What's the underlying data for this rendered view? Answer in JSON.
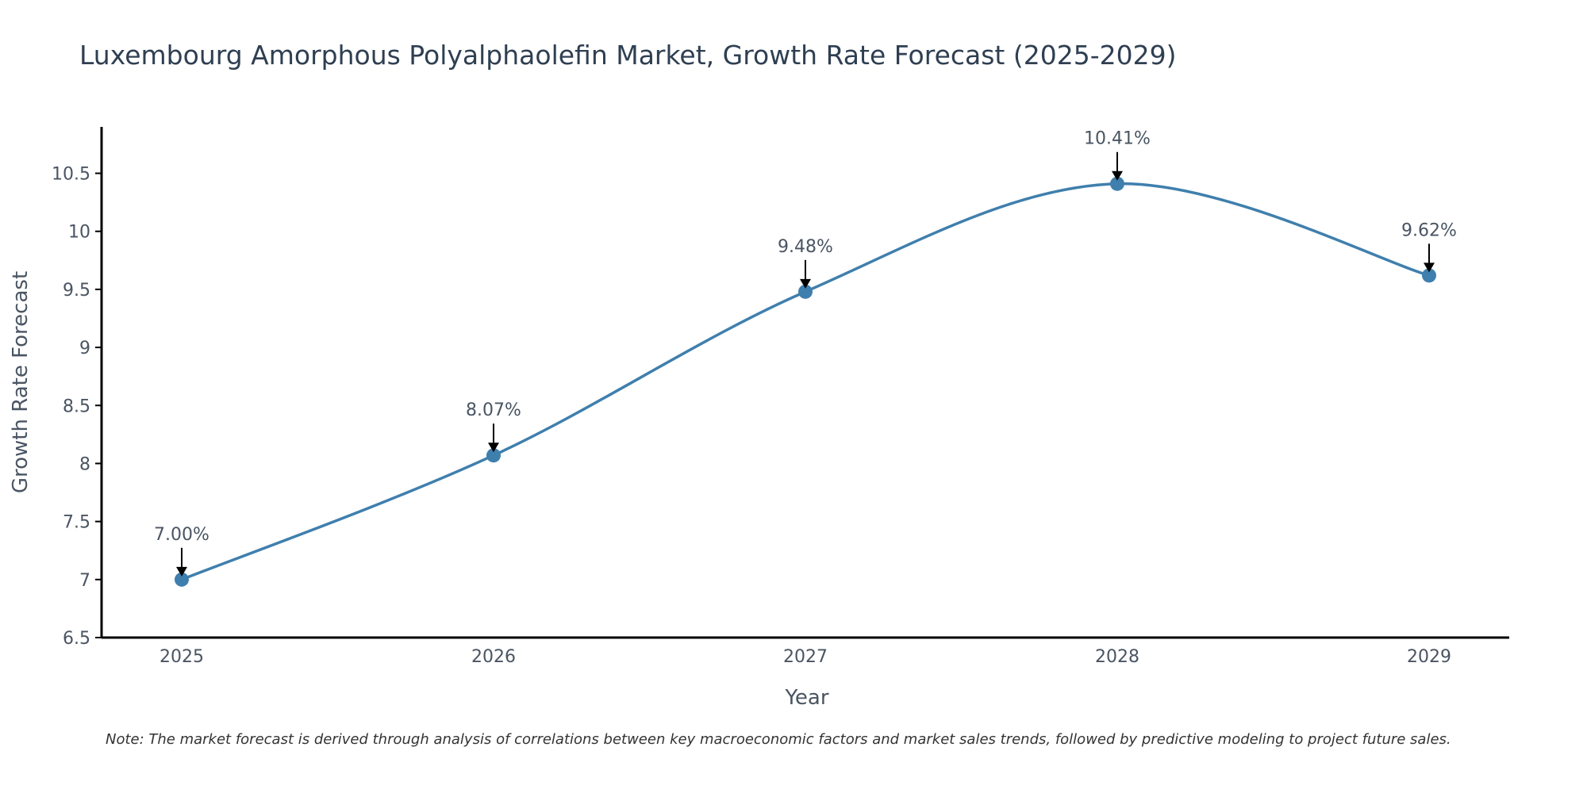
{
  "chart_data": {
    "type": "line",
    "title": "Luxembourg Amorphous Polyalphaolefin Market, Growth Rate Forecast (2025-2029)",
    "xlabel": "Year",
    "ylabel": "Growth Rate Forecast",
    "categories": [
      "2025",
      "2026",
      "2027",
      "2028",
      "2029"
    ],
    "values": [
      7.0,
      8.07,
      9.48,
      10.41,
      9.62
    ],
    "data_labels": [
      "7.00%",
      "8.07%",
      "9.48%",
      "10.41%",
      "9.62%"
    ],
    "ylim": [
      6.5,
      10.9
    ],
    "yticks": [
      6.5,
      7,
      7.5,
      8,
      8.5,
      9,
      9.5,
      10,
      10.5
    ],
    "ytick_labels": [
      "6.5",
      "7",
      "7.5",
      "8",
      "8.5",
      "9",
      "9.5",
      "10",
      "10.5"
    ],
    "grid": false,
    "line_color": "#3f7fad",
    "marker_color": "#3f7fad"
  },
  "note": "Note: The market forecast is derived through analysis of correlations between key macroeconomic factors and market sales trends, followed by predictive modeling to project future sales."
}
